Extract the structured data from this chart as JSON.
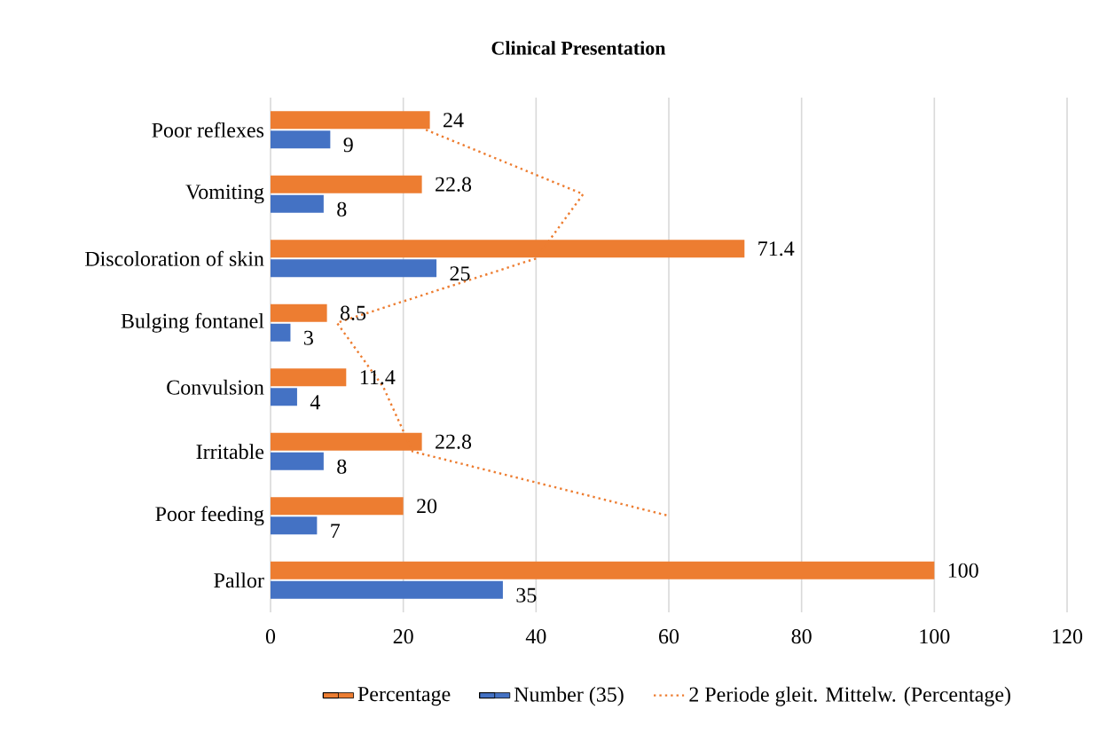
{
  "chart_data": {
    "type": "bar",
    "orientation": "horizontal",
    "title": "Clinical Presentation",
    "categories": [
      "Poor reflexes",
      "Vomiting",
      "Discoloration of skin",
      "Bulging fontanel",
      "Convulsion",
      "Irritable",
      "Poor feeding",
      "Pallor"
    ],
    "series": [
      {
        "name": "Percentage",
        "color": "#ed7d31",
        "values": [
          24,
          22.8,
          71.4,
          8.5,
          11.4,
          22.8,
          20,
          100
        ],
        "value_labels": [
          "24",
          "22.8",
          "71.4",
          "8.5",
          "11.4",
          "22.8",
          "20",
          "100"
        ]
      },
      {
        "name": "Number (35)",
        "color": "#4472c4",
        "values": [
          9,
          8,
          25,
          3,
          4,
          8,
          7,
          35
        ],
        "value_labels": [
          "9",
          "8",
          "25",
          "3",
          "4",
          "8",
          "7",
          "35"
        ]
      },
      {
        "name": "2 Periode gleit. Mittelw. (Percentage)",
        "type": "line",
        "line_style": "dotted",
        "color": "#ed7d31",
        "values": [
          23.4,
          47.1,
          40,
          10,
          17,
          21.4,
          60,
          null
        ]
      }
    ],
    "xlim": [
      0,
      120
    ],
    "xticks": [
      0,
      20,
      40,
      60,
      80,
      100,
      120
    ],
    "grid": "x",
    "legend": "bottom"
  }
}
